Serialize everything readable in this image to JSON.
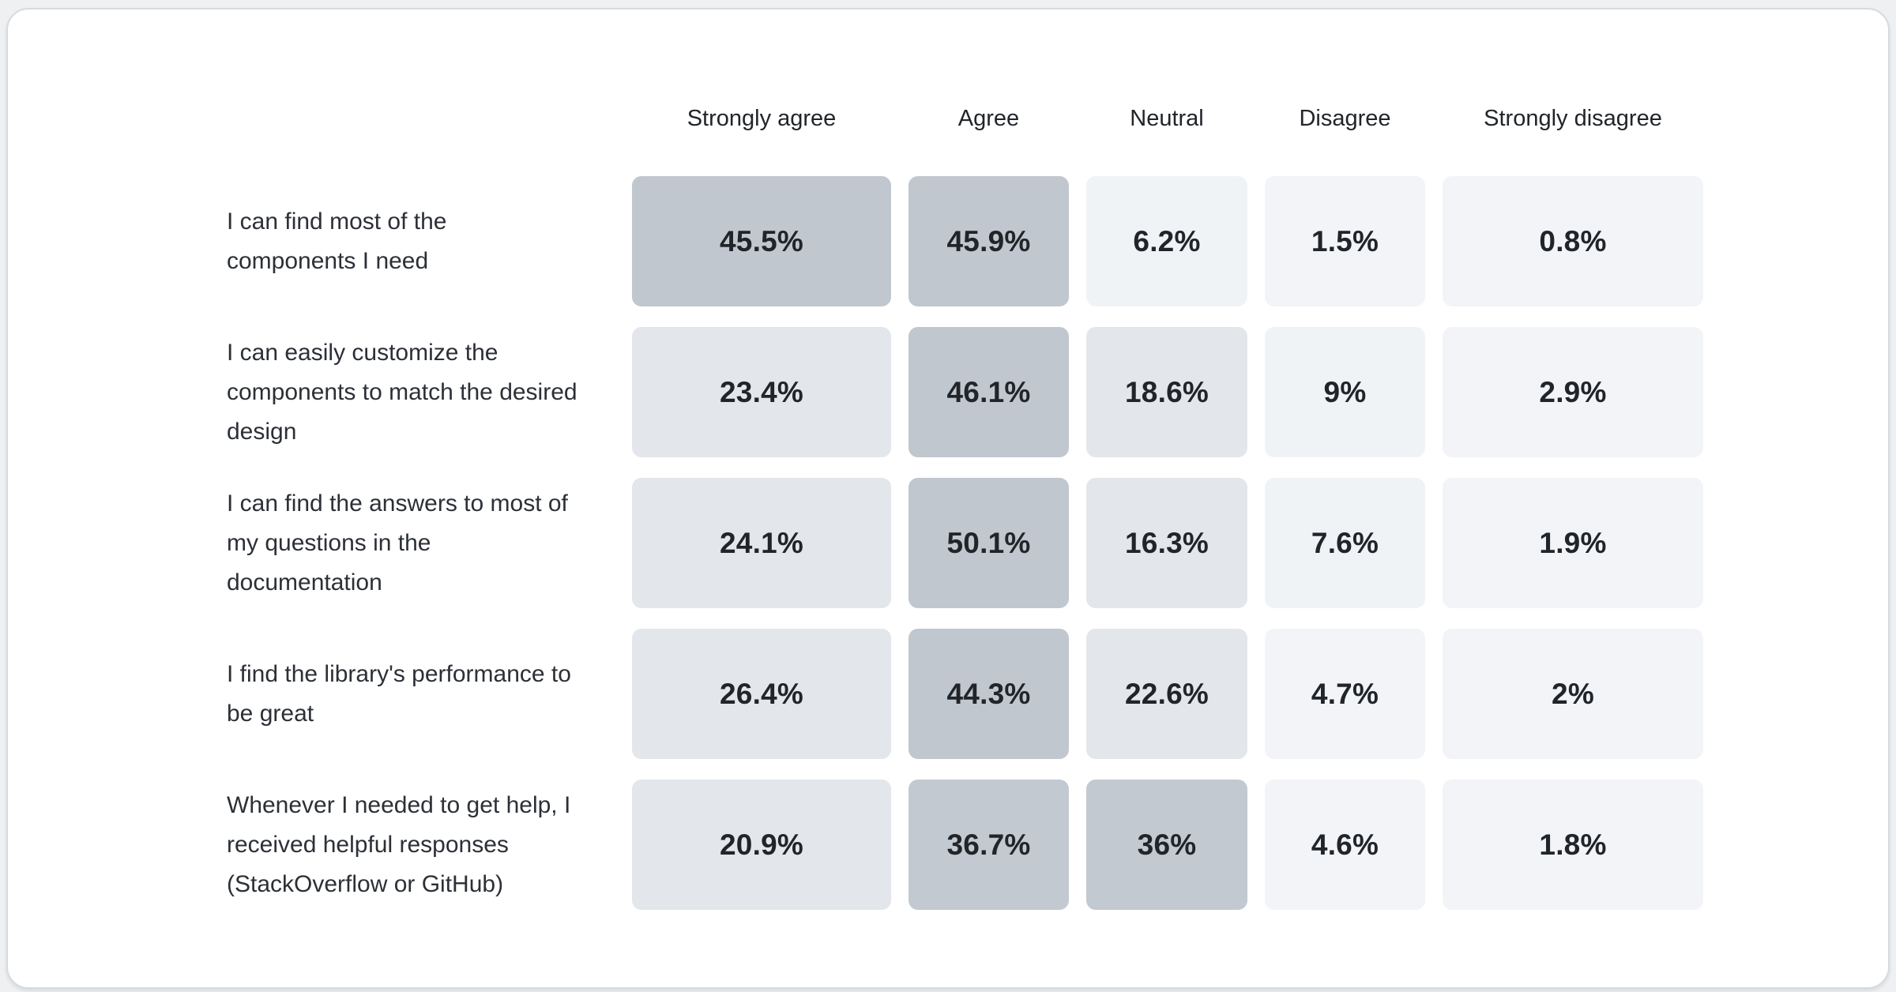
{
  "page": {
    "background_color": "#eef0f2"
  },
  "card": {
    "background_color": "#ffffff",
    "border_color": "#d5dbe0"
  },
  "chart_data": {
    "type": "heatmap",
    "title": "",
    "legend": "none",
    "unit": "%",
    "columns": [
      "Strongly agree",
      "Agree",
      "Neutral",
      "Disagree",
      "Strongly disagree"
    ],
    "rows": [
      {
        "label": "I can find most of the components I need",
        "values": [
          45.5,
          45.9,
          6.2,
          1.5,
          0.8
        ]
      },
      {
        "label": "I can easily customize the components to match the desired design",
        "values": [
          23.4,
          46.1,
          18.6,
          9,
          2.9
        ]
      },
      {
        "label": "I can find the answers to most of my questions in the documentation",
        "values": [
          24.1,
          50.1,
          16.3,
          7.6,
          1.9
        ]
      },
      {
        "label": "I find the library's performance to be great",
        "values": [
          26.4,
          44.3,
          22.6,
          4.7,
          2
        ]
      },
      {
        "label": "Whenever I needed to get help, I received helpful responses (StackOverflow or GitHub)",
        "values": [
          20.9,
          36.7,
          36,
          4.6,
          1.8
        ]
      }
    ],
    "color_scale": [
      {
        "min": 40,
        "color": "#c0c7ce"
      },
      {
        "min": 28,
        "color": "#c2c9d0"
      },
      {
        "min": 12,
        "color": "#e3e6ea"
      },
      {
        "min": 5,
        "color": "#f0f3f6"
      },
      {
        "min": 0,
        "color": "#f2f4f7"
      }
    ],
    "value_text_color": "#212529",
    "header_text_color": "#21252a",
    "label_text_color": "#2c3036"
  }
}
